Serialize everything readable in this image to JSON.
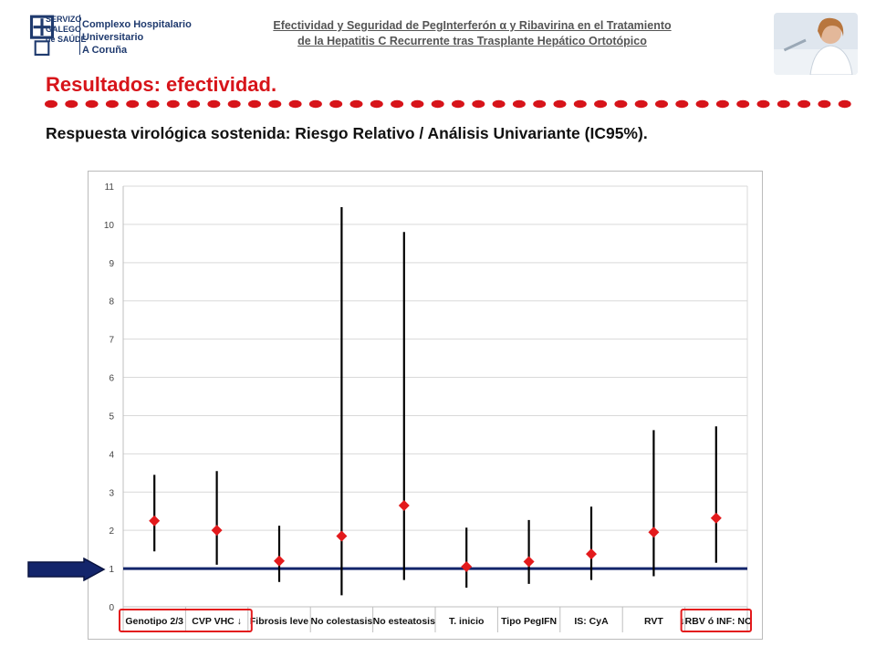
{
  "logo": {
    "line1": "SERVIZO",
    "line2": "GALEGO",
    "line3": "de SAÚDE",
    "right1": "Complexo Hospitalario Universitario",
    "right2": "A Coruña"
  },
  "header": {
    "line1": "Efectividad y Seguridad de PegInterferón α y Ribavirina en el Tratamiento",
    "line2": "de la Hepatitis C Recurrente tras Trasplante Hepático Ortotópico"
  },
  "slide_title": "Resultados: efectividad.",
  "subtitle": "Respuesta virológica sostenida: Riesgo Relativo / Análisis Univariante (IC95%).",
  "colors": {
    "title_red": "#d7141a",
    "marker": "#e31a1c",
    "reference_line": "#13256b",
    "arrow": "#13256b"
  },
  "chart_data": {
    "type": "scatter",
    "title": "",
    "xlabel": "",
    "ylabel": "",
    "ylim": [
      0,
      11
    ],
    "yticks": [
      "0",
      "1",
      "2",
      "3",
      "4",
      "5",
      "6",
      "7",
      "8",
      "9",
      "10",
      "11"
    ],
    "grid": true,
    "reference_value": 1,
    "categories": [
      "Genotipo 2/3",
      "CVP VHC ↓",
      "Fibrosis leve",
      "No colestasis",
      "No esteatosis",
      "T. inicio",
      "Tipo PegIFN",
      "IS: CyA",
      "RVT",
      "↓RBV ó INF: NO"
    ],
    "estimate": [
      2.25,
      2.0,
      1.2,
      1.85,
      2.65,
      1.05,
      1.18,
      1.38,
      1.95,
      2.32
    ],
    "lower": [
      1.45,
      1.1,
      0.65,
      0.3,
      0.7,
      0.5,
      0.6,
      0.7,
      0.8,
      1.15
    ],
    "upper": [
      3.45,
      3.55,
      2.12,
      10.45,
      9.8,
      2.07,
      2.27,
      2.62,
      4.62,
      4.72
    ],
    "highlighted_groups": [
      [
        "Genotipo 2/3",
        "CVP VHC ↓"
      ],
      [
        "↓RBV ó INF: NO"
      ]
    ]
  }
}
